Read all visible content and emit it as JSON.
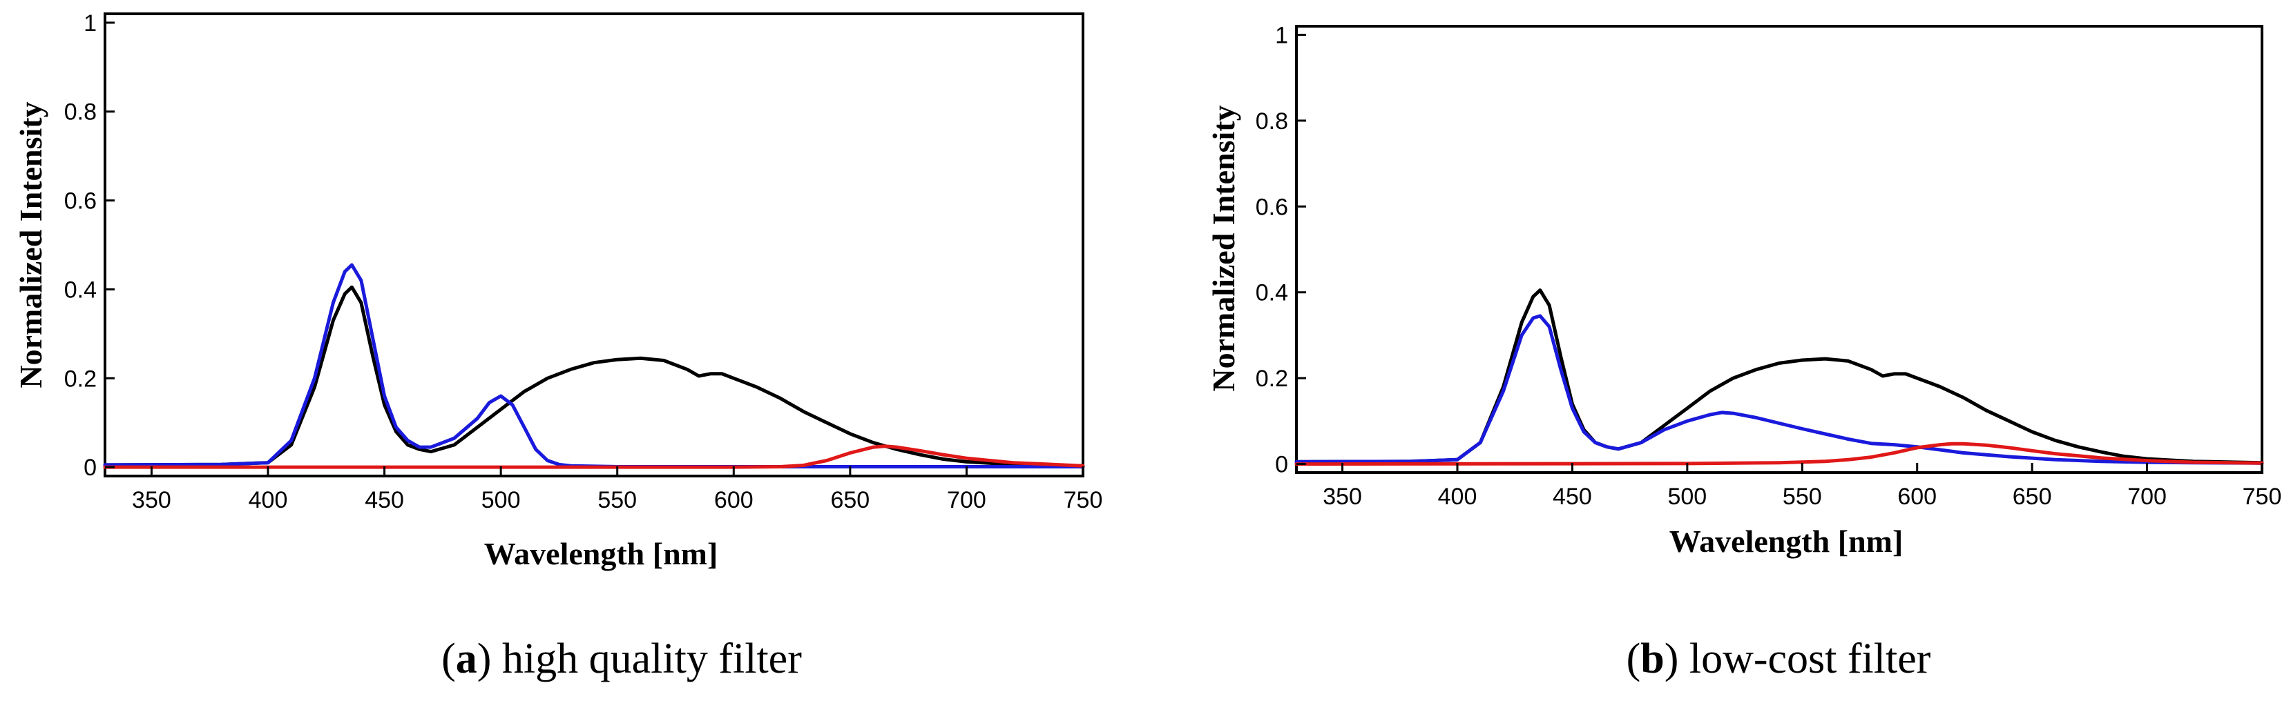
{
  "chart_data": [
    {
      "type": "line",
      "xlabel": "Wavelength [nm]",
      "ylabel": "Normalized Intensity",
      "xlim": [
        330,
        750
      ],
      "ylim": [
        -0.02,
        1.02
      ],
      "xticks": [
        "350",
        "400",
        "450",
        "500",
        "550",
        "600",
        "650",
        "700",
        "750"
      ],
      "yticks": [
        "0",
        "0.2",
        "0.4",
        "0.6",
        "0.8",
        "1"
      ],
      "grid": false,
      "caption": {
        "letter": "a",
        "text": "high quality filter"
      },
      "series": [
        {
          "color": "#000000",
          "x": [
            330,
            380,
            400,
            410,
            420,
            428,
            433,
            436,
            440,
            445,
            450,
            455,
            460,
            465,
            470,
            480,
            490,
            500,
            510,
            520,
            530,
            540,
            550,
            560,
            570,
            580,
            585,
            590,
            595,
            600,
            610,
            620,
            630,
            640,
            650,
            660,
            670,
            680,
            690,
            700,
            720,
            750
          ],
          "y": [
            0.005,
            0.006,
            0.01,
            0.05,
            0.18,
            0.33,
            0.39,
            0.405,
            0.37,
            0.25,
            0.14,
            0.08,
            0.05,
            0.04,
            0.035,
            0.05,
            0.09,
            0.13,
            0.17,
            0.2,
            0.22,
            0.235,
            0.242,
            0.245,
            0.24,
            0.22,
            0.205,
            0.21,
            0.21,
            0.2,
            0.18,
            0.155,
            0.125,
            0.1,
            0.075,
            0.055,
            0.04,
            0.028,
            0.018,
            0.012,
            0.006,
            0.003
          ]
        },
        {
          "color": "#1a1adc",
          "x": [
            330,
            380,
            400,
            410,
            420,
            428,
            433,
            436,
            440,
            445,
            450,
            455,
            460,
            465,
            470,
            480,
            490,
            495,
            500,
            505,
            510,
            515,
            520,
            525,
            530,
            550,
            600,
            650,
            700,
            750
          ],
          "y": [
            0.005,
            0.006,
            0.01,
            0.06,
            0.2,
            0.37,
            0.44,
            0.455,
            0.42,
            0.29,
            0.16,
            0.09,
            0.06,
            0.045,
            0.045,
            0.065,
            0.11,
            0.145,
            0.16,
            0.14,
            0.09,
            0.04,
            0.015,
            0.006,
            0.003,
            0.001,
            0.001,
            0.001,
            0.001,
            0.001
          ]
        },
        {
          "color": "#e01818",
          "x": [
            330,
            600,
            620,
            630,
            640,
            650,
            660,
            665,
            670,
            680,
            690,
            700,
            720,
            750
          ],
          "y": [
            0.0,
            0.0,
            0.001,
            0.004,
            0.015,
            0.032,
            0.045,
            0.047,
            0.045,
            0.037,
            0.028,
            0.02,
            0.01,
            0.003
          ]
        }
      ]
    },
    {
      "type": "line",
      "xlabel": "Wavelength [nm]",
      "ylabel": "Normalized Intensity",
      "xlim": [
        330,
        750
      ],
      "ylim": [
        -0.02,
        1.02
      ],
      "xticks": [
        "350",
        "400",
        "450",
        "500",
        "550",
        "600",
        "650",
        "700",
        "750"
      ],
      "yticks": [
        "0",
        "0.2",
        "0.4",
        "0.6",
        "0.8",
        "1"
      ],
      "grid": false,
      "caption": {
        "letter": "b",
        "text": "low-cost filter"
      },
      "series": [
        {
          "color": "#000000",
          "x": [
            330,
            380,
            400,
            410,
            420,
            428,
            433,
            436,
            440,
            445,
            450,
            455,
            460,
            465,
            470,
            480,
            490,
            500,
            510,
            520,
            530,
            540,
            550,
            560,
            570,
            580,
            585,
            590,
            595,
            600,
            610,
            620,
            630,
            640,
            650,
            660,
            670,
            680,
            690,
            700,
            720,
            750
          ],
          "y": [
            0.005,
            0.006,
            0.01,
            0.05,
            0.18,
            0.33,
            0.39,
            0.405,
            0.37,
            0.25,
            0.14,
            0.08,
            0.05,
            0.04,
            0.035,
            0.05,
            0.09,
            0.13,
            0.17,
            0.2,
            0.22,
            0.235,
            0.242,
            0.245,
            0.24,
            0.22,
            0.205,
            0.21,
            0.21,
            0.2,
            0.18,
            0.155,
            0.125,
            0.1,
            0.075,
            0.055,
            0.04,
            0.028,
            0.018,
            0.012,
            0.006,
            0.003
          ]
        },
        {
          "color": "#1a1adc",
          "x": [
            330,
            380,
            400,
            410,
            420,
            428,
            433,
            436,
            440,
            445,
            450,
            455,
            460,
            465,
            470,
            480,
            490,
            500,
            510,
            515,
            520,
            530,
            540,
            550,
            560,
            570,
            580,
            590,
            600,
            610,
            620,
            640,
            660,
            680,
            700,
            720,
            750
          ],
          "y": [
            0.005,
            0.006,
            0.01,
            0.05,
            0.17,
            0.3,
            0.34,
            0.345,
            0.32,
            0.22,
            0.13,
            0.075,
            0.05,
            0.04,
            0.035,
            0.05,
            0.08,
            0.1,
            0.115,
            0.12,
            0.118,
            0.108,
            0.095,
            0.082,
            0.07,
            0.058,
            0.048,
            0.045,
            0.04,
            0.033,
            0.026,
            0.017,
            0.01,
            0.006,
            0.004,
            0.003,
            0.002
          ]
        },
        {
          "color": "#e01818",
          "x": [
            330,
            500,
            540,
            560,
            570,
            580,
            590,
            600,
            610,
            615,
            620,
            630,
            640,
            650,
            660,
            680,
            700,
            720,
            750
          ],
          "y": [
            0.0,
            0.001,
            0.003,
            0.006,
            0.01,
            0.016,
            0.026,
            0.038,
            0.045,
            0.047,
            0.047,
            0.044,
            0.038,
            0.031,
            0.024,
            0.014,
            0.008,
            0.004,
            0.002
          ]
        }
      ]
    }
  ]
}
